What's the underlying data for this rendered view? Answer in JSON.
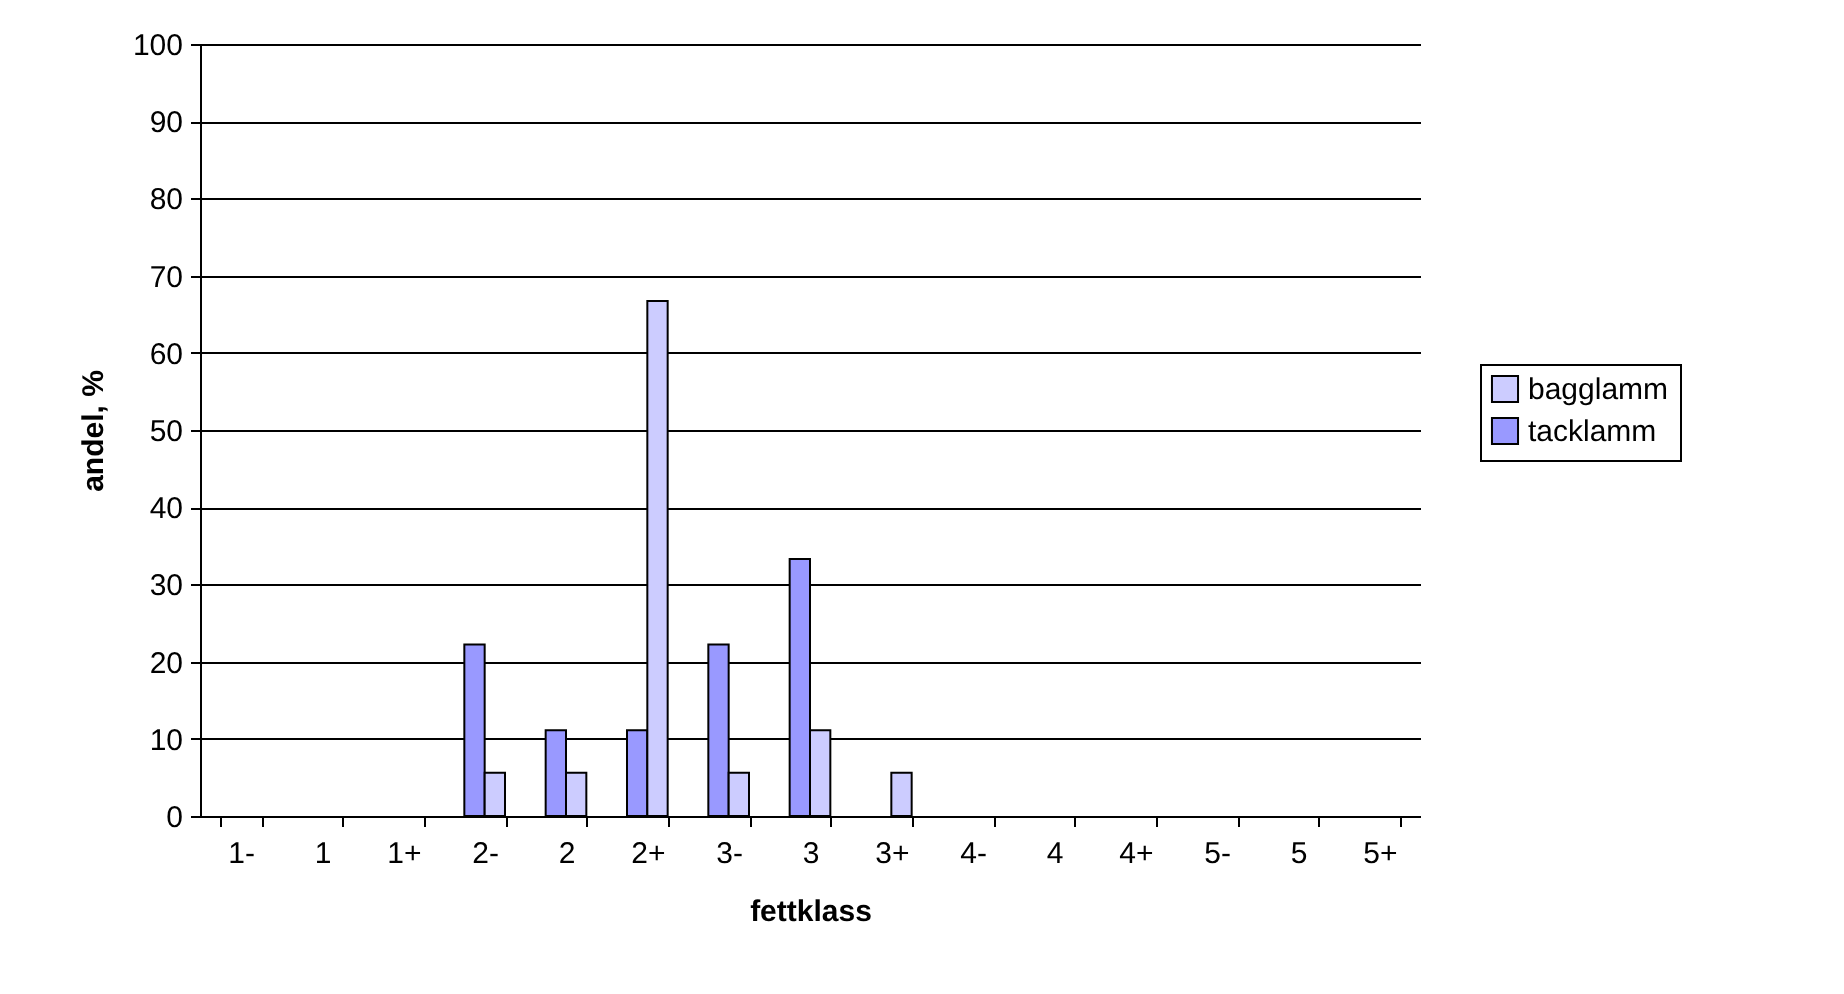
{
  "chart_data": {
    "type": "bar",
    "xlabel": "fettklass",
    "ylabel": "andel, %",
    "categories": [
      "1-",
      "1",
      "1+",
      "2-",
      "2",
      "2+",
      "3-",
      "3",
      "3+",
      "4-",
      "4",
      "4+",
      "5-",
      "5",
      "5+"
    ],
    "series": [
      {
        "name": "tacklamm",
        "color": "#9999ff",
        "values": [
          null,
          null,
          null,
          22.2,
          11.1,
          11.1,
          22.2,
          33.3,
          null,
          null,
          null,
          null,
          null,
          null,
          null
        ]
      },
      {
        "name": "bagglamm",
        "color": "#ccccff",
        "values": [
          null,
          null,
          null,
          5.6,
          5.6,
          66.7,
          5.6,
          11.1,
          5.6,
          null,
          null,
          null,
          null,
          null,
          null
        ]
      }
    ],
    "ylim": [
      0,
      100
    ],
    "yticks": [
      0,
      10,
      20,
      30,
      40,
      50,
      60,
      70,
      80,
      90,
      100
    ],
    "grid": "y",
    "legend": "right"
  }
}
